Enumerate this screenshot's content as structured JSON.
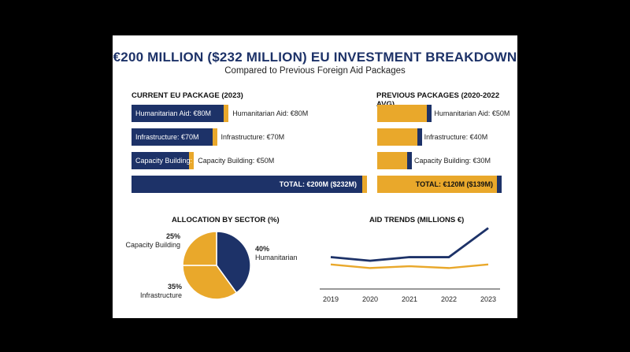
{
  "title": "€200 MILLION ($232 MILLION) EU INVESTMENT BREAKDOWN",
  "subtitle": "Compared to Previous Foreign Aid Packages",
  "colors": {
    "navy": "#1d3268",
    "gold": "#e9a82b",
    "background": "#ffffff"
  },
  "chart_data": [
    {
      "type": "bar",
      "title": "CURRENT EU PACKAGE (2023)",
      "categories": [
        "Humanitarian Aid",
        "Infrastructure",
        "Capacity Building",
        "TOTAL"
      ],
      "values": [
        80,
        70,
        50,
        200
      ],
      "unit": "€M",
      "labels": [
        "Humanitarian Aid: €80M",
        "Infrastructure: €70M",
        "Capacity Building: €50M"
      ],
      "inner_labels": [
        "Humanitarian Aid: €80M",
        "Infrastructure: €70M",
        "Capacity Building: €50M"
      ],
      "total_label": "TOTAL: €200M ($232M)"
    },
    {
      "type": "bar",
      "title": "PREVIOUS PACKAGES (2020-2022 AVG)",
      "categories": [
        "Humanitarian Aid",
        "Infrastructure",
        "Capacity Building",
        "TOTAL"
      ],
      "values": [
        50,
        40,
        30,
        120
      ],
      "unit": "€M",
      "labels": [
        "Humanitarian Aid: €50M",
        "Infrastructure: €40M",
        "Capacity Building: €30M"
      ],
      "total_label": "TOTAL: €120M ($139M)"
    },
    {
      "type": "pie",
      "title": "ALLOCATION BY SECTOR (%)",
      "categories": [
        "Humanitarian",
        "Infrastructure",
        "Capacity Building"
      ],
      "values": [
        40,
        35,
        25
      ],
      "percent_labels": [
        "40%",
        "35%",
        "25%"
      ]
    },
    {
      "type": "line",
      "title": "AID TRENDS (MILLIONS €)",
      "x": [
        "2019",
        "2020",
        "2021",
        "2022",
        "2023"
      ],
      "series": [
        {
          "values": [
            120,
            110,
            120,
            120,
            200
          ],
          "color": "#1d3268"
        },
        {
          "values": [
            100,
            90,
            95,
            90,
            100
          ],
          "color": "#e9a82b"
        }
      ]
    }
  ]
}
